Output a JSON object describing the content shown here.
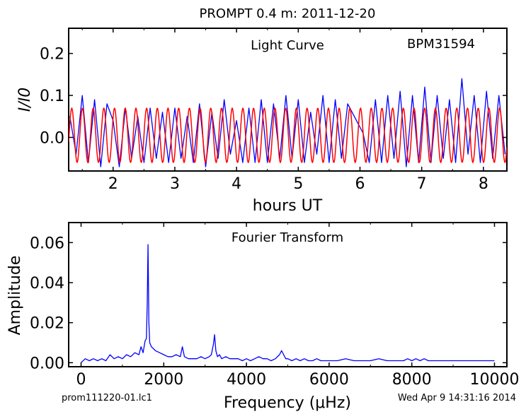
{
  "figure": {
    "title": "PROMPT 0.4 m:  2011-12-20",
    "footer_left": "prom111220-01.lc1",
    "footer_right": "Wed Apr  9 14:31:16 2014"
  },
  "chart_data": [
    {
      "type": "line",
      "title": "Light Curve",
      "annotation": "BPM31594",
      "xlabel": "hours UT",
      "ylabel": "I/I0",
      "xlim": [
        1.28,
        8.38
      ],
      "ylim": [
        -0.08,
        0.26
      ],
      "xticks": [
        2,
        3,
        4,
        5,
        6,
        7,
        8
      ],
      "yticks": [
        0.0,
        0.1,
        0.2
      ],
      "ytick_labels": [
        "0.0",
        "0.1",
        "0.2"
      ],
      "colors": {
        "data": "#0000ff",
        "model": "#ff0000"
      },
      "gap": [
        5.82,
        6.05
      ],
      "series": [
        {
          "color": "#0000ff",
          "x": [
            1.3,
            1.4,
            1.5,
            1.6,
            1.7,
            1.8,
            1.9,
            2.0,
            2.1,
            2.2,
            2.3,
            2.4,
            2.5,
            2.6,
            2.7,
            2.8,
            2.9,
            3.0,
            3.1,
            3.2,
            3.3,
            3.4,
            3.5,
            3.6,
            3.7,
            3.8,
            3.9,
            4.0,
            4.1,
            4.2,
            4.3,
            4.4,
            4.5,
            4.6,
            4.7,
            4.8,
            4.9,
            5.0,
            5.1,
            5.2,
            5.3,
            5.4,
            5.5,
            5.6,
            5.7,
            5.8,
            6.05,
            6.15,
            6.25,
            6.35,
            6.45,
            6.55,
            6.65,
            6.75,
            6.85,
            6.95,
            7.05,
            7.15,
            7.25,
            7.35,
            7.45,
            7.55,
            7.65,
            7.75,
            7.85,
            7.95,
            8.05,
            8.15,
            8.25,
            8.35
          ],
          "y": [
            0.05,
            -0.04,
            0.1,
            -0.06,
            0.09,
            -0.07,
            0.08,
            0.04,
            -0.07,
            0.07,
            -0.05,
            0.05,
            -0.06,
            0.07,
            -0.05,
            0.06,
            -0.06,
            0.07,
            -0.05,
            0.05,
            -0.06,
            0.08,
            -0.07,
            0.06,
            -0.05,
            0.09,
            -0.04,
            0.04,
            -0.06,
            0.07,
            -0.06,
            0.09,
            -0.06,
            0.08,
            -0.05,
            0.1,
            -0.05,
            0.09,
            -0.06,
            0.06,
            -0.04,
            0.1,
            -0.06,
            0.09,
            -0.05,
            0.08,
            0.01,
            -0.06,
            0.09,
            -0.06,
            0.1,
            -0.05,
            0.11,
            -0.07,
            0.1,
            -0.06,
            0.12,
            -0.06,
            0.1,
            -0.05,
            0.09,
            -0.06,
            0.14,
            -0.04,
            0.1,
            -0.06,
            0.11,
            -0.05,
            0.1,
            -0.04
          ]
        },
        {
          "color": "#ff0000",
          "model": true,
          "period_hours": 0.1733,
          "amplitude": 0.065,
          "offset": 0.005,
          "x_start": 1.28,
          "x_end": 8.38
        }
      ]
    },
    {
      "type": "line",
      "title": "Fourier Transform",
      "xlabel": "Frequency (μHz)",
      "ylabel": "Amplitude",
      "xlim": [
        -300,
        10300
      ],
      "ylim": [
        -0.002,
        0.07
      ],
      "xticks": [
        0,
        2000,
        4000,
        6000,
        8000,
        10000
      ],
      "yticks": [
        0.0,
        0.02,
        0.04,
        0.06
      ],
      "ytick_labels": [
        "0.00",
        "0.02",
        "0.04",
        "0.06"
      ],
      "series": [
        {
          "color": "#0000ff",
          "x": [
            0,
            100,
            200,
            300,
            400,
            500,
            600,
            700,
            800,
            900,
            1000,
            1100,
            1200,
            1300,
            1400,
            1450,
            1500,
            1550,
            1580,
            1600,
            1620,
            1640,
            1660,
            1700,
            1750,
            1800,
            1900,
            2000,
            2100,
            2200,
            2300,
            2400,
            2450,
            2500,
            2600,
            2700,
            2800,
            2900,
            3000,
            3100,
            3150,
            3200,
            3230,
            3260,
            3300,
            3350,
            3400,
            3500,
            3600,
            3700,
            3800,
            3900,
            4000,
            4100,
            4200,
            4300,
            4400,
            4500,
            4600,
            4700,
            4800,
            4850,
            4900,
            4950,
            5000,
            5100,
            5200,
            5300,
            5400,
            5500,
            5600,
            5700,
            5800,
            5900,
            6000,
            6200,
            6400,
            6600,
            6800,
            7000,
            7200,
            7400,
            7600,
            7800,
            7900,
            8000,
            8100,
            8200,
            8300,
            8400,
            8600,
            8800,
            9000,
            9200,
            9400,
            9600,
            9800,
            10000
          ],
          "y": [
            0.0,
            0.002,
            0.001,
            0.002,
            0.001,
            0.002,
            0.001,
            0.004,
            0.002,
            0.003,
            0.002,
            0.004,
            0.003,
            0.005,
            0.004,
            0.008,
            0.005,
            0.011,
            0.012,
            0.03,
            0.059,
            0.02,
            0.01,
            0.008,
            0.007,
            0.006,
            0.005,
            0.004,
            0.003,
            0.003,
            0.004,
            0.003,
            0.008,
            0.003,
            0.002,
            0.002,
            0.002,
            0.003,
            0.002,
            0.003,
            0.004,
            0.009,
            0.014,
            0.006,
            0.003,
            0.004,
            0.002,
            0.003,
            0.002,
            0.002,
            0.002,
            0.001,
            0.002,
            0.001,
            0.002,
            0.003,
            0.002,
            0.002,
            0.001,
            0.002,
            0.004,
            0.006,
            0.004,
            0.002,
            0.002,
            0.001,
            0.002,
            0.001,
            0.002,
            0.001,
            0.001,
            0.002,
            0.001,
            0.001,
            0.001,
            0.001,
            0.002,
            0.001,
            0.001,
            0.001,
            0.002,
            0.001,
            0.001,
            0.001,
            0.002,
            0.001,
            0.002,
            0.001,
            0.002,
            0.001,
            0.001,
            0.001,
            0.001,
            0.001,
            0.001,
            0.001,
            0.001,
            0.001
          ]
        }
      ]
    }
  ]
}
